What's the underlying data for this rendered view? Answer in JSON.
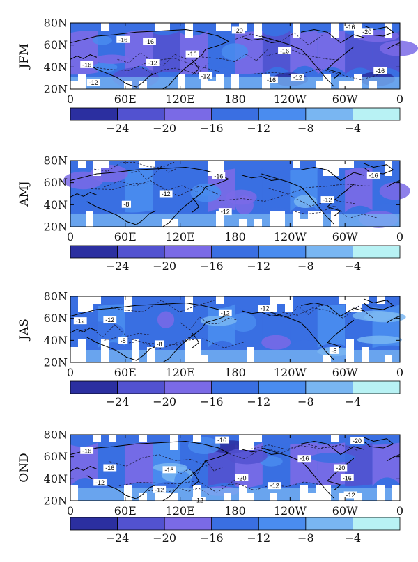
{
  "panels": [
    {
      "season": "JFM",
      "contour_labels": [
        "-16",
        "-20",
        "-16",
        "-20",
        "-16",
        "-16",
        "-16",
        "-12",
        "-16",
        "-12",
        "-16",
        "-12",
        "-12",
        "-16"
      ]
    },
    {
      "season": "AMJ",
      "contour_labels": [
        "-16",
        "-12",
        "-16",
        "-8",
        "-12",
        "-12"
      ]
    },
    {
      "season": "JAS",
      "contour_labels": [
        "-12",
        "-12",
        "-12",
        "-12",
        "-8",
        "-8",
        "-8"
      ]
    },
    {
      "season": "OND",
      "contour_labels": [
        "-16",
        "-16",
        "-20",
        "-16",
        "-16",
        "-12",
        "-16",
        "-20",
        "-12",
        "-12",
        "-20",
        "-16",
        "-12",
        "-12"
      ]
    }
  ],
  "axes": {
    "lat_ticks": [
      "80N",
      "60N",
      "40N",
      "20N"
    ],
    "lon_ticks": [
      "0",
      "60E",
      "120E",
      "180",
      "120W",
      "60W",
      "0"
    ]
  },
  "colorbar": {
    "tick_labels": [
      "-24",
      "-20",
      "-16",
      "-12",
      "-8",
      "-4"
    ],
    "colors": [
      "#2b2fa0",
      "#5252d0",
      "#7a6ae6",
      "#3a6fe2",
      "#4a8cef",
      "#79b6f2",
      "#b8f2f4"
    ]
  },
  "map_colors": {
    "land_outline": "#000000",
    "missing": "#ffffff"
  }
}
